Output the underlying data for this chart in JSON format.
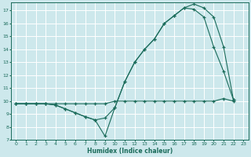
{
  "xlabel": "Humidex (Indice chaleur)",
  "bg_color": "#cde8ec",
  "grid_color": "#ffffff",
  "line_color": "#1a6b5a",
  "xlim": [
    -0.5,
    23.5
  ],
  "ylim": [
    7,
    17.6
  ],
  "xticks": [
    0,
    1,
    2,
    3,
    4,
    5,
    6,
    7,
    8,
    9,
    10,
    11,
    12,
    13,
    14,
    15,
    16,
    17,
    18,
    19,
    20,
    21,
    22,
    23
  ],
  "yticks": [
    7,
    8,
    9,
    10,
    11,
    12,
    13,
    14,
    15,
    16,
    17
  ],
  "curve1_x": [
    0,
    1,
    2,
    3,
    4,
    5,
    6,
    7,
    8,
    9,
    10,
    11,
    12,
    13,
    14,
    15,
    16,
    17,
    18,
    19,
    20,
    21,
    22
  ],
  "curve1_y": [
    9.8,
    9.8,
    9.8,
    9.8,
    9.8,
    9.8,
    9.8,
    9.8,
    9.8,
    9.8,
    10.0,
    10.0,
    10.0,
    10.0,
    10.0,
    10.0,
    10.0,
    10.0,
    10.0,
    10.0,
    10.0,
    10.2,
    10.0
  ],
  "curve2_x": [
    0,
    1,
    2,
    3,
    4,
    5,
    6,
    7,
    8,
    9,
    10,
    11,
    12,
    13,
    14,
    15,
    16,
    17,
    18,
    19,
    20,
    21,
    22
  ],
  "curve2_y": [
    9.8,
    9.8,
    9.8,
    9.8,
    9.7,
    9.4,
    9.1,
    8.8,
    8.55,
    8.7,
    9.5,
    11.5,
    13.0,
    14.0,
    14.8,
    16.0,
    16.6,
    17.2,
    17.1,
    16.5,
    14.2,
    12.3,
    10.1
  ],
  "curve3_x": [
    0,
    1,
    2,
    3,
    4,
    5,
    6,
    7,
    8,
    9,
    10,
    11,
    12,
    13,
    14,
    15,
    16,
    17,
    18,
    19,
    20,
    21,
    22
  ],
  "curve3_y": [
    9.8,
    9.8,
    9.8,
    9.8,
    9.7,
    9.4,
    9.1,
    8.8,
    8.55,
    7.3,
    9.5,
    11.5,
    13.0,
    14.0,
    14.8,
    16.0,
    16.6,
    17.2,
    17.5,
    17.2,
    16.5,
    14.2,
    10.1
  ]
}
